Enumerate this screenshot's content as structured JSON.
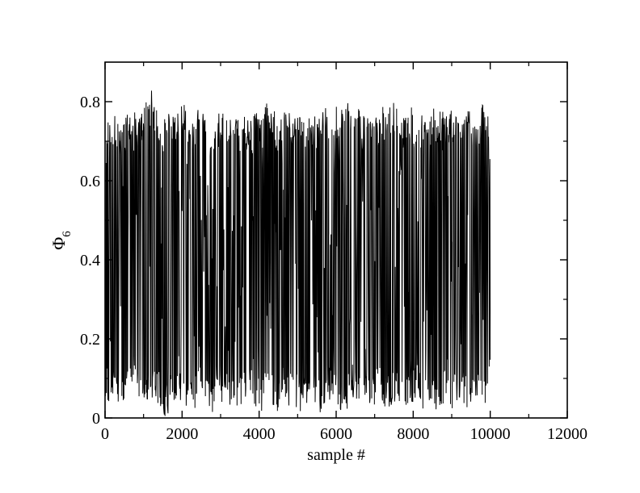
{
  "chart_data": {
    "type": "line",
    "title": "",
    "xlabel": "sample #",
    "ylabel": "Φ",
    "ylabel_subscript": "6",
    "xlim": [
      0,
      12000
    ],
    "ylim": [
      0,
      0.9
    ],
    "x_ticks": [
      0,
      2000,
      4000,
      6000,
      8000,
      10000,
      12000
    ],
    "x_tick_labels": [
      "0",
      "2000",
      "4000",
      "6000",
      "8000",
      "10000",
      "12000"
    ],
    "x_minor_ticks": [
      1000,
      3000,
      5000,
      7000,
      9000,
      11000
    ],
    "y_ticks": [
      0,
      0.2,
      0.4,
      0.6,
      0.8
    ],
    "y_tick_labels": [
      "0",
      "0.2",
      "0.4",
      "0.6",
      "0.8"
    ],
    "y_minor_ticks": [
      0.1,
      0.3,
      0.5,
      0.7
    ],
    "grid": false,
    "legend": "none",
    "series": [
      {
        "color": "#000000",
        "x_start": 0,
        "x_end": 10000,
        "n_samples": 10000,
        "band_upper_typical": 0.76,
        "band_lower_typical": 0.03,
        "max": 0.83,
        "min": 0.0,
        "x": [
          0,
          100,
          200,
          300,
          400,
          500,
          600,
          700,
          800,
          900,
          1000,
          1100,
          1200,
          1300,
          1400,
          1500,
          1600,
          1700,
          1800,
          1900,
          2000,
          2100,
          2200,
          2300,
          2400,
          2500,
          2600,
          2700,
          2800,
          2900,
          3000,
          3100,
          3200,
          3300,
          3400,
          3500,
          3600,
          3700,
          3800,
          3900,
          4000,
          4100,
          4200,
          4300,
          4400,
          4500,
          4600,
          4700,
          4800,
          4900,
          5000,
          5100,
          5200,
          5300,
          5400,
          5500,
          5600,
          5700,
          5800,
          5900,
          6000,
          6100,
          6200,
          6300,
          6400,
          6500,
          6600,
          6700,
          6800,
          6900,
          7000,
          7100,
          7200,
          7300,
          7400,
          7500,
          7600,
          7700,
          7800,
          7900,
          8000,
          8100,
          8200,
          8300,
          8400,
          8500,
          8600,
          8700,
          8800,
          8900,
          9000,
          9100,
          9200,
          9300,
          9400,
          9500,
          9600,
          9700,
          9800,
          9900,
          10000
        ],
        "y_high": [
          0.72,
          0.77,
          0.76,
          0.78,
          0.75,
          0.76,
          0.79,
          0.78,
          0.77,
          0.76,
          0.78,
          0.82,
          0.83,
          0.8,
          0.77,
          0.76,
          0.78,
          0.76,
          0.77,
          0.78,
          0.79,
          0.8,
          0.77,
          0.76,
          0.79,
          0.78,
          0.8,
          0.78,
          0.76,
          0.78,
          0.79,
          0.8,
          0.77,
          0.76,
          0.78,
          0.77,
          0.76,
          0.77,
          0.76,
          0.77,
          0.79,
          0.77,
          0.8,
          0.79,
          0.78,
          0.76,
          0.77,
          0.78,
          0.77,
          0.75,
          0.78,
          0.76,
          0.76,
          0.77,
          0.76,
          0.77,
          0.76,
          0.79,
          0.78,
          0.8,
          0.79,
          0.78,
          0.82,
          0.8,
          0.79,
          0.81,
          0.78,
          0.76,
          0.79,
          0.77,
          0.78,
          0.76,
          0.8,
          0.78,
          0.8,
          0.81,
          0.78,
          0.77,
          0.76,
          0.78,
          0.79,
          0.75,
          0.76,
          0.78,
          0.76,
          0.79,
          0.78,
          0.79,
          0.78,
          0.76,
          0.79,
          0.77,
          0.78,
          0.76,
          0.8,
          0.77,
          0.78,
          0.77,
          0.8,
          0.79,
          0.72
        ],
        "y_low": [
          0.02,
          0.03,
          0.05,
          0.01,
          0.04,
          0.02,
          0.03,
          0.06,
          0.05,
          0.03,
          0.04,
          0.02,
          0.01,
          0.05,
          0.03,
          0.01,
          0.0,
          0.02,
          0.04,
          0.03,
          0.05,
          0.02,
          0.04,
          0.01,
          0.03,
          0.05,
          0.03,
          0.02,
          0.01,
          0.06,
          0.04,
          0.03,
          0.02,
          0.05,
          0.01,
          0.03,
          0.02,
          0.04,
          0.05,
          0.03,
          0.01,
          0.02,
          0.04,
          0.02,
          0.03,
          0.01,
          0.05,
          0.02,
          0.03,
          0.04,
          0.02,
          0.01,
          0.03,
          0.0,
          0.02,
          0.04,
          0.01,
          0.03,
          0.05,
          0.02,
          0.03,
          0.01,
          0.04,
          0.02,
          0.05,
          0.03,
          0.01,
          0.02,
          0.04,
          0.03,
          0.02,
          0.05,
          0.01,
          0.03,
          0.02,
          0.04,
          0.03,
          0.01,
          0.0,
          0.02,
          0.03,
          0.05,
          0.02,
          0.01,
          0.03,
          0.04,
          0.02,
          0.01,
          0.03,
          0.05,
          0.02,
          0.03,
          0.01,
          0.04,
          0.02,
          0.03,
          0.05,
          0.02,
          0.04,
          0.03,
          0.1
        ]
      }
    ]
  }
}
